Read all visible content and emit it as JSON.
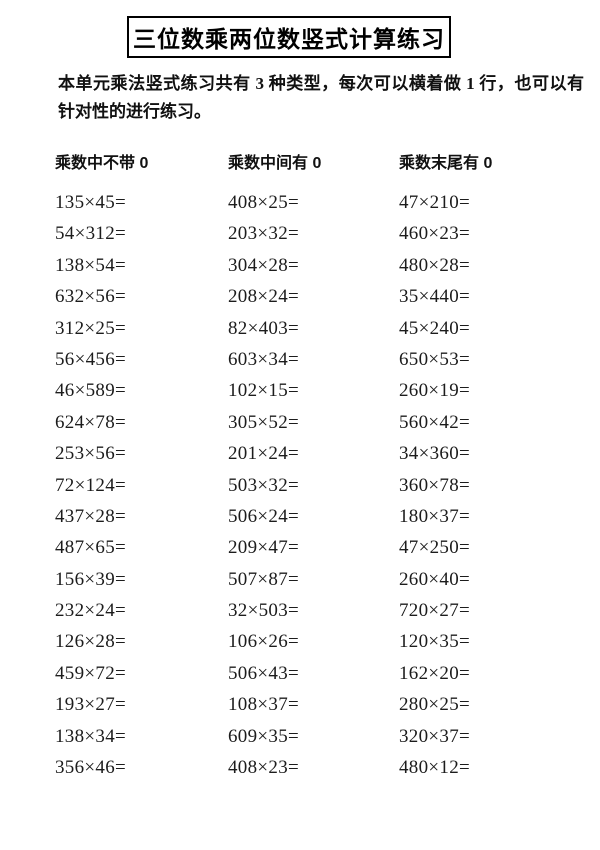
{
  "title": "三位数乘两位数竖式计算练习",
  "intro": "本单元乘法竖式练习共有 3 种类型，每次可以横着做 1 行，也可以有针对性的进行练习。",
  "columns": [
    {
      "header": "乘数中不带 0",
      "problems": [
        "135×45=",
        "54×312=",
        "138×54=",
        "632×56=",
        "312×25=",
        "56×456=",
        "46×589=",
        "624×78=",
        "253×56=",
        "72×124=",
        "437×28=",
        "487×65=",
        "156×39=",
        "232×24=",
        "126×28=",
        "459×72=",
        "193×27=",
        "138×34=",
        "356×46="
      ]
    },
    {
      "header": "乘数中间有 0",
      "problems": [
        "408×25=",
        "203×32=",
        "304×28=",
        "208×24=",
        "82×403=",
        "603×34=",
        "102×15=",
        "305×52=",
        "201×24=",
        "503×32=",
        "506×24=",
        "209×47=",
        "507×87=",
        "32×503=",
        "106×26=",
        "506×43=",
        "108×37=",
        "609×35=",
        "408×23="
      ]
    },
    {
      "header": "乘数末尾有 0",
      "problems": [
        "47×210=",
        "460×23=",
        "480×28=",
        "35×440=",
        "45×240=",
        "650×53=",
        "260×19=",
        "560×42=",
        "34×360=",
        "360×78=",
        "180×37=",
        "47×250=",
        "260×40=",
        "720×27=",
        "120×35=",
        "162×20=",
        "280×25=",
        "320×37=",
        "480×12="
      ]
    }
  ],
  "colors": {
    "background": "#ffffff",
    "text": "#1c1c1c",
    "title_border": "#000000"
  }
}
